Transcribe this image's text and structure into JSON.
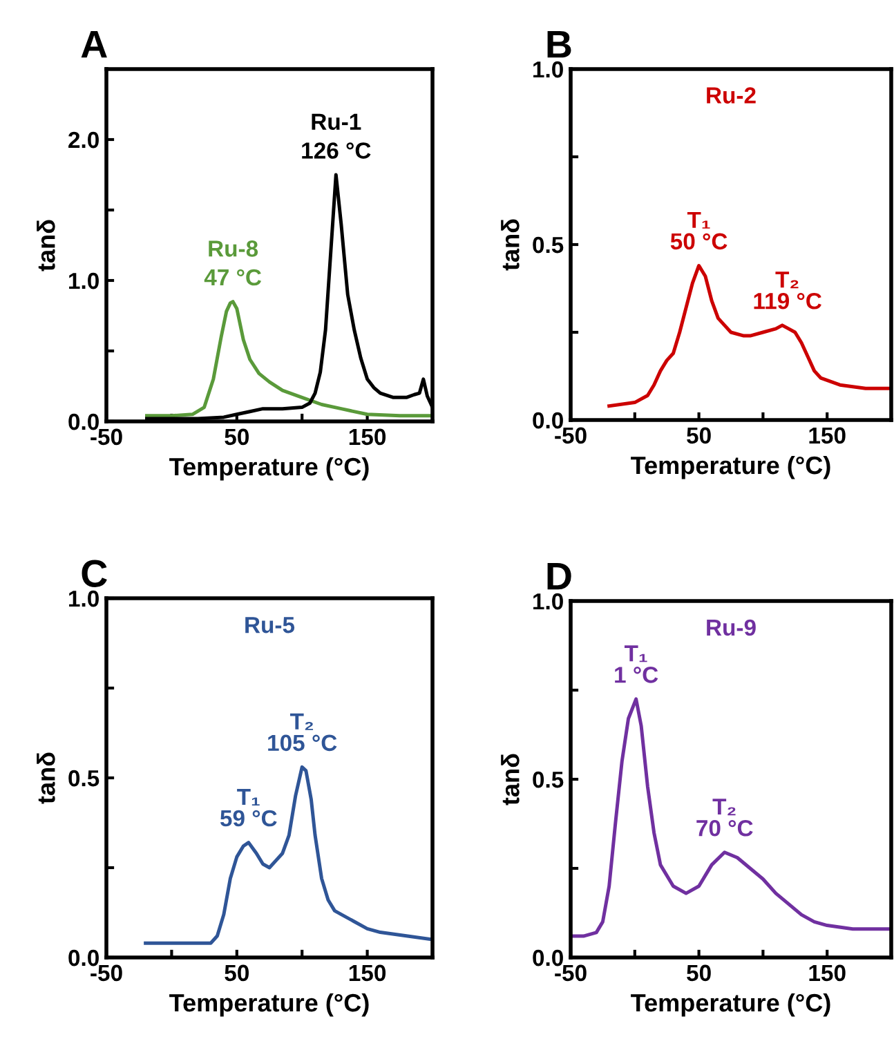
{
  "chart_data": [
    {
      "type": "line",
      "title": "A",
      "xlabel": "Temperature (°C)",
      "ylabel": "tanδ",
      "xlim": [
        -50,
        200
      ],
      "ylim": [
        0,
        2.5
      ],
      "xticks": [
        -50,
        {
          "value": 0,
          "label": null
        },
        50,
        {
          "value": 100,
          "label": null
        },
        150,
        {
          "value": 200,
          "label": null
        }
      ],
      "yticks": [
        {
          "value": 0,
          "label": "0.0"
        },
        {
          "value": 0.5,
          "label": null
        },
        {
          "value": 1,
          "label": "1.0"
        },
        {
          "value": 1.5,
          "label": null
        },
        {
          "value": 2,
          "label": "2.0"
        }
      ],
      "series": [
        {
          "name": "Ru-8",
          "color": "#5a9a3a",
          "x": [
            -19,
            0,
            16,
            25,
            32,
            38,
            42,
            45,
            47,
            50,
            55,
            60,
            67,
            75,
            85,
            100,
            115,
            130,
            150,
            175,
            200
          ],
          "values": [
            0.04,
            0.04,
            0.05,
            0.1,
            0.3,
            0.6,
            0.78,
            0.84,
            0.85,
            0.8,
            0.58,
            0.44,
            0.34,
            0.28,
            0.22,
            0.17,
            0.12,
            0.09,
            0.05,
            0.04,
            0.04
          ]
        },
        {
          "name": "Ru-1",
          "color": "#000000",
          "x": [
            -19,
            20,
            40,
            50,
            60,
            70,
            85,
            100,
            106,
            110,
            114,
            118,
            122,
            126,
            130,
            135,
            140,
            145,
            150,
            155,
            160,
            170,
            180,
            186,
            190,
            193,
            196,
            200
          ],
          "values": [
            0.02,
            0.02,
            0.03,
            0.05,
            0.07,
            0.09,
            0.09,
            0.1,
            0.13,
            0.2,
            0.35,
            0.65,
            1.2,
            1.75,
            1.4,
            0.9,
            0.65,
            0.45,
            0.3,
            0.24,
            0.2,
            0.17,
            0.17,
            0.19,
            0.2,
            0.3,
            0.18,
            0.1
          ]
        }
      ],
      "annotations": [
        {
          "text": "47 °C",
          "x": 47,
          "y": 0.85
        },
        {
          "text": "126 °C",
          "x": 126,
          "y": 1.75
        }
      ]
    },
    {
      "type": "line",
      "title": "B",
      "xlabel": "Temperature (°C)",
      "ylabel": "tanδ",
      "xlim": [
        -50,
        200
      ],
      "ylim": [
        0,
        1
      ],
      "xticks": [
        -50,
        {
          "value": 0,
          "label": null
        },
        50,
        {
          "value": 100,
          "label": null
        },
        150,
        {
          "value": 200,
          "label": null
        }
      ],
      "yticks": [
        {
          "value": 0,
          "label": "0.0"
        },
        {
          "value": 0.25,
          "label": null
        },
        {
          "value": 0.5,
          "label": "0.5"
        },
        {
          "value": 0.75,
          "label": null
        },
        {
          "value": 1,
          "label": "1.0"
        }
      ],
      "series": [
        {
          "name": "Ru-2",
          "color": "#cc0000",
          "x": [
            -20,
            0,
            10,
            15,
            20,
            25,
            30,
            35,
            40,
            45,
            50,
            55,
            60,
            65,
            70,
            75,
            85,
            90,
            100,
            110,
            115,
            120,
            125,
            130,
            135,
            140,
            145,
            160,
            180,
            200
          ],
          "values": [
            0.04,
            0.05,
            0.07,
            0.1,
            0.14,
            0.17,
            0.19,
            0.25,
            0.32,
            0.39,
            0.44,
            0.41,
            0.34,
            0.29,
            0.27,
            0.25,
            0.24,
            0.24,
            0.25,
            0.26,
            0.27,
            0.26,
            0.25,
            0.22,
            0.18,
            0.14,
            0.12,
            0.1,
            0.09,
            0.09
          ]
        }
      ],
      "annotations": [
        {
          "text": "T₁\n50 °C",
          "x": 50,
          "y": 0.44
        },
        {
          "text": "T₂\n119 °C",
          "x": 119,
          "y": 0.27
        }
      ]
    },
    {
      "type": "line",
      "title": "C",
      "xlabel": "Temperature (°C)",
      "ylabel": "tanδ",
      "xlim": [
        -50,
        200
      ],
      "ylim": [
        0,
        1
      ],
      "xticks": [
        -50,
        {
          "value": 0,
          "label": null
        },
        50,
        {
          "value": 100,
          "label": null
        },
        150,
        {
          "value": 200,
          "label": null
        }
      ],
      "yticks": [
        {
          "value": 0,
          "label": "0.0"
        },
        {
          "value": 0.25,
          "label": null
        },
        {
          "value": 0.5,
          "label": "0.5"
        },
        {
          "value": 0.75,
          "label": null
        },
        {
          "value": 1,
          "label": "1.0"
        }
      ],
      "series": [
        {
          "name": "Ru-5",
          "color": "#2f5597",
          "x": [
            -20,
            0,
            30,
            35,
            40,
            45,
            50,
            55,
            59,
            65,
            70,
            75,
            80,
            85,
            90,
            95,
            100,
            103,
            107,
            110,
            115,
            120,
            125,
            130,
            140,
            150,
            160,
            180,
            200
          ],
          "values": [
            0.04,
            0.04,
            0.04,
            0.06,
            0.12,
            0.22,
            0.28,
            0.31,
            0.32,
            0.29,
            0.26,
            0.25,
            0.27,
            0.29,
            0.34,
            0.45,
            0.53,
            0.52,
            0.44,
            0.34,
            0.22,
            0.16,
            0.13,
            0.12,
            0.1,
            0.08,
            0.07,
            0.06,
            0.05
          ]
        }
      ],
      "annotations": [
        {
          "text": "T₁\n59 °C",
          "x": 59,
          "y": 0.32
        },
        {
          "text": "T₂\n105 °C",
          "x": 100,
          "y": 0.53
        }
      ]
    },
    {
      "type": "line",
      "title": "D",
      "xlabel": "Temperature (°C)",
      "ylabel": "tanδ",
      "xlim": [
        -50,
        200
      ],
      "ylim": [
        0,
        1
      ],
      "xticks": [
        -50,
        {
          "value": 0,
          "label": null
        },
        50,
        {
          "value": 100,
          "label": null
        },
        150,
        {
          "value": 200,
          "label": null
        }
      ],
      "yticks": [
        {
          "value": 0,
          "label": "0.0"
        },
        {
          "value": 0.25,
          "label": null
        },
        {
          "value": 0.5,
          "label": "0.5"
        },
        {
          "value": 0.75,
          "label": null
        },
        {
          "value": 1,
          "label": "1.0"
        }
      ],
      "series": [
        {
          "name": "Ru-9",
          "color": "#7030a0",
          "x": [
            -50,
            -40,
            -30,
            -25,
            -20,
            -15,
            -10,
            -5,
            1,
            5,
            10,
            15,
            20,
            30,
            40,
            50,
            60,
            70,
            80,
            90,
            100,
            110,
            120,
            130,
            140,
            150,
            170,
            200
          ],
          "values": [
            0.06,
            0.06,
            0.07,
            0.1,
            0.2,
            0.38,
            0.55,
            0.67,
            0.725,
            0.65,
            0.48,
            0.35,
            0.26,
            0.2,
            0.18,
            0.2,
            0.26,
            0.295,
            0.28,
            0.25,
            0.22,
            0.18,
            0.15,
            0.12,
            0.1,
            0.09,
            0.08,
            0.08
          ]
        }
      ],
      "annotations": [
        {
          "text": "T₁\n1 °C",
          "x": 1,
          "y": 0.725
        },
        {
          "text": "T₂\n70 °C",
          "x": 70,
          "y": 0.295
        }
      ]
    }
  ]
}
